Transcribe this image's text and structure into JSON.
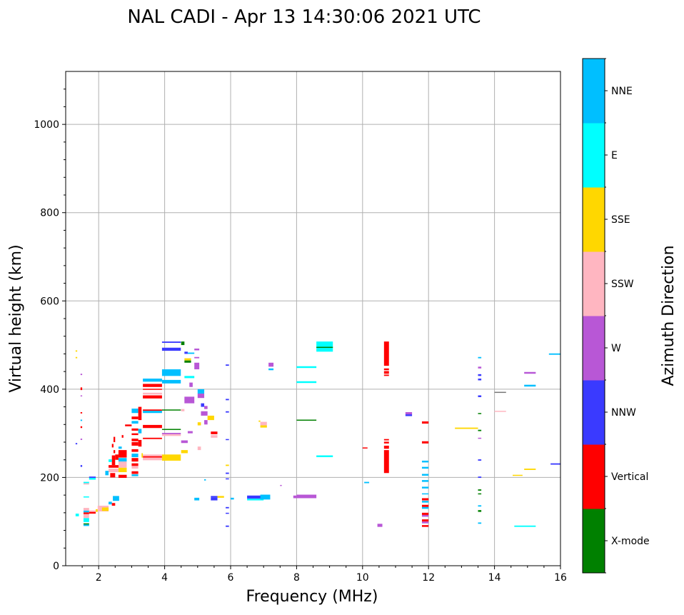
{
  "chart_data": {
    "type": "scatter",
    "title": "NAL CADI - Apr 13 14:30:06 2021 UTC",
    "xlabel": "Frequency (MHz)",
    "ylabel": "Virtual height (km)",
    "xlim": [
      1,
      16
    ],
    "ylim": [
      0,
      1120
    ],
    "xticks": [
      2,
      4,
      6,
      8,
      10,
      12,
      14,
      16
    ],
    "yticks": [
      0,
      200,
      400,
      600,
      800,
      1000
    ],
    "grid": true,
    "colorbar": {
      "label": "Azimuth Direction",
      "categories": [
        "X-mode",
        "Vertical",
        "NNW",
        "W",
        "SSW",
        "SSE",
        "E",
        "NNE"
      ],
      "colors": [
        "#008000",
        "#ff0000",
        "#3a3aff",
        "#b857d6",
        "#ffb6c1",
        "#ffd700",
        "#00ffff",
        "#00bfff"
      ]
    },
    "marks_format": "[freq_start_MHz, freq_end_MHz, height_low_km, height_high_km, category_index]",
    "marks": [
      [
        8.6,
        9.1,
        485,
        508,
        6
      ],
      [
        8.6,
        9.1,
        494,
        496,
        0
      ],
      [
        10.65,
        10.8,
        453,
        508,
        1
      ],
      [
        10.65,
        10.8,
        443,
        447,
        1
      ],
      [
        10.65,
        10.8,
        435,
        441,
        1
      ],
      [
        10.65,
        10.8,
        430,
        433,
        1
      ],
      [
        10.65,
        10.8,
        210,
        262,
        1
      ],
      [
        10.65,
        10.8,
        265,
        272,
        1
      ],
      [
        10.65,
        10.8,
        277,
        281,
        1
      ],
      [
        10.65,
        10.8,
        284,
        287,
        1
      ],
      [
        10.0,
        10.15,
        266,
        268,
        1
      ],
      [
        8.0,
        8.6,
        448,
        452,
        6
      ],
      [
        8.0,
        8.6,
        414,
        418,
        6
      ],
      [
        8.6,
        9.1,
        246,
        250,
        6
      ],
      [
        8.0,
        8.6,
        329,
        331,
        0
      ],
      [
        8.0,
        8.6,
        153,
        161,
        3
      ],
      [
        7.9,
        8.0,
        153,
        159,
        3
      ],
      [
        6.5,
        7.0,
        152,
        159,
        2
      ],
      [
        6.5,
        7.0,
        148,
        152,
        6
      ],
      [
        6.9,
        7.2,
        150,
        161,
        7
      ],
      [
        7.15,
        7.3,
        451,
        460,
        3
      ],
      [
        7.15,
        7.3,
        443,
        447,
        7
      ],
      [
        6.9,
        7.1,
        318,
        326,
        4
      ],
      [
        6.9,
        7.1,
        313,
        318,
        5
      ],
      [
        6.85,
        6.9,
        326,
        329,
        5
      ],
      [
        7.5,
        7.55,
        181,
        183,
        3
      ],
      [
        5.85,
        5.95,
        453,
        456,
        2
      ],
      [
        5.85,
        5.95,
        375,
        378,
        2
      ],
      [
        5.85,
        5.95,
        347,
        350,
        2
      ],
      [
        5.85,
        5.95,
        285,
        287,
        2
      ],
      [
        5.85,
        5.95,
        226,
        229,
        5
      ],
      [
        5.85,
        5.95,
        208,
        211,
        2
      ],
      [
        5.85,
        5.95,
        196,
        198,
        2
      ],
      [
        5.85,
        5.95,
        130,
        133,
        2
      ],
      [
        5.85,
        5.95,
        118,
        120,
        2
      ],
      [
        5.85,
        5.95,
        88,
        91,
        2
      ],
      [
        11.8,
        12.0,
        322,
        327,
        1
      ],
      [
        11.8,
        12.0,
        277,
        282,
        1
      ],
      [
        11.8,
        12.0,
        234,
        238,
        7
      ],
      [
        11.8,
        12.0,
        220,
        224,
        7
      ],
      [
        11.8,
        12.0,
        204,
        208,
        7
      ],
      [
        11.8,
        12.0,
        190,
        194,
        7
      ],
      [
        11.8,
        12.0,
        175,
        179,
        7
      ],
      [
        11.8,
        12.0,
        162,
        164,
        7
      ],
      [
        11.8,
        12.0,
        148,
        153,
        1
      ],
      [
        11.8,
        12.0,
        143,
        147,
        7
      ],
      [
        11.8,
        12.0,
        133,
        138,
        1
      ],
      [
        11.8,
        12.0,
        129,
        133,
        7
      ],
      [
        11.8,
        12.0,
        115,
        120,
        1
      ],
      [
        11.8,
        12.0,
        111,
        115,
        3
      ],
      [
        11.8,
        12.0,
        100,
        105,
        1
      ],
      [
        11.8,
        12.0,
        96,
        100,
        3
      ],
      [
        11.8,
        12.0,
        88,
        92,
        1
      ],
      [
        10.05,
        10.2,
        187,
        190,
        7
      ],
      [
        10.45,
        10.6,
        88,
        95,
        3
      ],
      [
        11.3,
        11.5,
        343,
        348,
        3
      ],
      [
        11.3,
        11.5,
        339,
        343,
        2
      ],
      [
        12.8,
        13.5,
        310,
        313,
        5
      ],
      [
        13.5,
        13.6,
        470,
        473,
        7
      ],
      [
        13.5,
        13.6,
        447,
        451,
        3
      ],
      [
        13.5,
        13.6,
        430,
        434,
        2
      ],
      [
        13.5,
        13.6,
        420,
        424,
        2
      ],
      [
        13.5,
        13.6,
        382,
        386,
        2
      ],
      [
        13.5,
        13.6,
        344,
        346,
        0
      ],
      [
        13.5,
        13.6,
        305,
        308,
        0
      ],
      [
        13.5,
        13.6,
        288,
        290,
        3
      ],
      [
        13.5,
        13.6,
        238,
        241,
        2
      ],
      [
        13.5,
        13.6,
        199,
        202,
        2
      ],
      [
        13.5,
        13.6,
        170,
        173,
        0
      ],
      [
        13.5,
        13.6,
        162,
        164,
        0
      ],
      [
        13.5,
        13.6,
        134,
        137,
        7
      ],
      [
        13.5,
        13.6,
        122,
        126,
        0
      ],
      [
        13.5,
        13.6,
        95,
        98,
        7
      ],
      [
        14.0,
        14.35,
        392,
        394,
        0
      ],
      [
        14.0,
        14.35,
        350,
        351,
        4
      ],
      [
        14.55,
        14.85,
        204,
        206,
        5
      ],
      [
        14.9,
        15.25,
        217,
        220,
        5
      ],
      [
        14.6,
        15.25,
        88,
        91,
        6
      ],
      [
        14.9,
        15.25,
        435,
        439,
        3
      ],
      [
        14.9,
        15.25,
        406,
        410,
        7
      ],
      [
        15.65,
        16.0,
        478,
        481,
        7
      ],
      [
        15.7,
        16.0,
        229,
        232,
        2
      ],
      [
        3.92,
        4.49,
        505,
        508,
        2
      ],
      [
        3.92,
        4.49,
        487,
        494,
        2
      ],
      [
        3.92,
        4.49,
        430,
        445,
        7
      ],
      [
        3.92,
        4.49,
        413,
        421,
        7
      ],
      [
        3.34,
        3.92,
        417,
        424,
        7
      ],
      [
        3.34,
        3.92,
        405,
        412,
        1
      ],
      [
        3.34,
        3.92,
        399,
        401,
        1
      ],
      [
        3.34,
        3.92,
        388,
        392,
        4
      ],
      [
        3.34,
        3.92,
        379,
        386,
        1
      ],
      [
        3.34,
        3.92,
        351,
        354,
        1
      ],
      [
        3.34,
        3.92,
        346,
        351,
        7
      ],
      [
        3.92,
        4.49,
        352,
        354,
        0
      ],
      [
        3.0,
        3.2,
        346,
        356,
        7
      ],
      [
        3.34,
        3.92,
        312,
        319,
        1
      ],
      [
        3.92,
        4.49,
        308,
        310,
        0
      ],
      [
        3.92,
        4.49,
        298,
        301,
        3
      ],
      [
        3.92,
        4.49,
        294,
        298,
        4
      ],
      [
        3.34,
        3.92,
        287,
        290,
        1
      ],
      [
        3.34,
        3.92,
        248,
        252,
        4
      ],
      [
        3.34,
        3.92,
        245,
        248,
        1
      ],
      [
        3.34,
        3.92,
        239,
        245,
        4
      ],
      [
        3.92,
        4.49,
        238,
        252,
        5
      ],
      [
        3.0,
        3.2,
        332,
        338,
        1
      ],
      [
        3.0,
        3.2,
        322,
        328,
        7
      ],
      [
        2.8,
        3.0,
        316,
        320,
        1
      ],
      [
        3.0,
        3.2,
        306,
        311,
        1
      ],
      [
        3.0,
        3.2,
        296,
        300,
        1
      ],
      [
        3.0,
        3.2,
        282,
        288,
        1
      ],
      [
        3.0,
        3.2,
        272,
        280,
        1
      ],
      [
        3.0,
        3.2,
        258,
        264,
        1
      ],
      [
        3.0,
        3.2,
        246,
        254,
        7
      ],
      [
        3.0,
        3.2,
        236,
        244,
        1
      ],
      [
        3.0,
        3.2,
        226,
        232,
        1
      ],
      [
        3.0,
        3.2,
        220,
        226,
        4
      ],
      [
        3.0,
        3.2,
        208,
        214,
        1
      ],
      [
        3.0,
        3.2,
        203,
        207,
        7
      ],
      [
        2.6,
        2.85,
        245,
        262,
        1
      ],
      [
        2.6,
        2.85,
        236,
        244,
        7
      ],
      [
        2.6,
        2.85,
        230,
        236,
        4
      ],
      [
        2.6,
        2.85,
        222,
        230,
        4
      ],
      [
        2.6,
        2.85,
        212,
        222,
        5
      ],
      [
        2.6,
        2.85,
        199,
        206,
        1
      ],
      [
        2.5,
        2.6,
        240,
        252,
        1
      ],
      [
        2.4,
        2.5,
        228,
        250,
        1
      ],
      [
        2.3,
        2.4,
        235,
        241,
        6
      ],
      [
        2.3,
        2.6,
        222,
        228,
        1
      ],
      [
        2.3,
        2.6,
        212,
        220,
        4
      ],
      [
        2.35,
        2.5,
        200,
        210,
        1
      ],
      [
        2.2,
        2.3,
        205,
        215,
        7
      ],
      [
        3.2,
        3.3,
        330,
        360,
        1
      ],
      [
        3.2,
        3.3,
        300,
        310,
        7
      ],
      [
        3.2,
        3.3,
        270,
        285,
        1
      ],
      [
        3.3,
        3.34,
        245,
        255,
        5
      ],
      [
        2.45,
        2.5,
        280,
        292,
        1
      ],
      [
        2.4,
        2.45,
        268,
        276,
        1
      ],
      [
        2.6,
        2.7,
        265,
        270,
        7
      ],
      [
        2.7,
        2.75,
        290,
        296,
        1
      ],
      [
        2.45,
        2.5,
        255,
        262,
        1
      ],
      [
        2.43,
        2.62,
        147,
        158,
        7
      ],
      [
        2.3,
        2.4,
        139,
        145,
        7
      ],
      [
        2.4,
        2.5,
        136,
        142,
        1
      ],
      [
        1.97,
        2.3,
        123,
        136,
        4
      ],
      [
        2.1,
        2.3,
        124,
        132,
        5
      ],
      [
        1.71,
        1.91,
        118,
        122,
        1
      ],
      [
        1.71,
        1.91,
        122,
        125,
        4
      ],
      [
        1.91,
        1.97,
        122,
        128,
        5
      ],
      [
        1.54,
        1.71,
        99,
        108,
        6
      ],
      [
        1.54,
        1.71,
        108,
        117,
        4
      ],
      [
        1.54,
        1.71,
        117,
        121,
        1
      ],
      [
        1.54,
        1.71,
        121,
        125,
        7
      ],
      [
        1.54,
        1.71,
        90,
        94,
        7
      ],
      [
        1.54,
        1.71,
        94,
        96,
        0
      ],
      [
        1.54,
        1.71,
        125,
        131,
        4
      ],
      [
        1.3,
        1.4,
        112,
        118,
        6
      ],
      [
        1.71,
        1.91,
        199,
        202,
        2
      ],
      [
        1.71,
        1.91,
        195,
        199,
        6
      ],
      [
        1.54,
        1.71,
        187,
        190,
        6
      ],
      [
        1.54,
        1.71,
        184,
        187,
        4
      ],
      [
        1.54,
        1.71,
        155,
        157,
        6
      ],
      [
        1.3,
        1.35,
        485,
        488,
        5
      ],
      [
        1.3,
        1.35,
        470,
        473,
        5
      ],
      [
        1.45,
        1.5,
        432,
        435,
        3
      ],
      [
        1.45,
        1.5,
        398,
        404,
        1
      ],
      [
        1.45,
        1.5,
        384,
        386,
        3
      ],
      [
        1.45,
        1.5,
        345,
        348,
        1
      ],
      [
        1.45,
        1.5,
        328,
        331,
        7
      ],
      [
        1.45,
        1.5,
        312,
        316,
        1
      ],
      [
        1.45,
        1.5,
        285,
        288,
        3
      ],
      [
        1.3,
        1.35,
        275,
        278,
        2
      ],
      [
        1.45,
        1.5,
        224,
        228,
        2
      ],
      [
        4.5,
        4.6,
        500,
        508,
        0
      ],
      [
        4.6,
        4.7,
        480,
        485,
        2
      ],
      [
        4.7,
        4.9,
        480,
        483,
        7
      ],
      [
        4.9,
        5.05,
        488,
        492,
        3
      ],
      [
        4.9,
        5.05,
        470,
        473,
        3
      ],
      [
        4.6,
        4.8,
        465,
        470,
        5
      ],
      [
        4.6,
        4.8,
        460,
        465,
        0
      ],
      [
        4.9,
        5.05,
        445,
        460,
        3
      ],
      [
        4.6,
        4.9,
        425,
        430,
        6
      ],
      [
        4.6,
        4.9,
        368,
        383,
        3
      ],
      [
        4.75,
        4.85,
        405,
        415,
        3
      ],
      [
        5.0,
        5.2,
        390,
        400,
        7
      ],
      [
        5.0,
        5.2,
        380,
        390,
        3
      ],
      [
        5.1,
        5.2,
        360,
        368,
        2
      ],
      [
        5.2,
        5.3,
        355,
        362,
        3
      ],
      [
        5.1,
        5.3,
        340,
        350,
        3
      ],
      [
        5.3,
        5.5,
        330,
        340,
        5
      ],
      [
        5.2,
        5.3,
        320,
        330,
        3
      ],
      [
        5.0,
        5.1,
        318,
        325,
        5
      ],
      [
        4.5,
        4.6,
        350,
        355,
        4
      ],
      [
        4.7,
        4.85,
        300,
        305,
        3
      ],
      [
        4.5,
        4.7,
        278,
        284,
        3
      ],
      [
        4.5,
        4.7,
        255,
        262,
        5
      ],
      [
        5.4,
        5.6,
        298,
        304,
        1
      ],
      [
        5.4,
        5.6,
        290,
        296,
        4
      ],
      [
        5.0,
        5.1,
        262,
        270,
        4
      ],
      [
        5.2,
        5.25,
        193,
        196,
        7
      ],
      [
        4.9,
        5.05,
        148,
        154,
        7
      ],
      [
        5.4,
        5.6,
        154,
        158,
        2
      ],
      [
        5.4,
        5.6,
        148,
        154,
        2
      ],
      [
        5.6,
        5.8,
        154,
        158,
        5
      ],
      [
        6.0,
        6.1,
        150,
        154,
        7
      ]
    ]
  }
}
